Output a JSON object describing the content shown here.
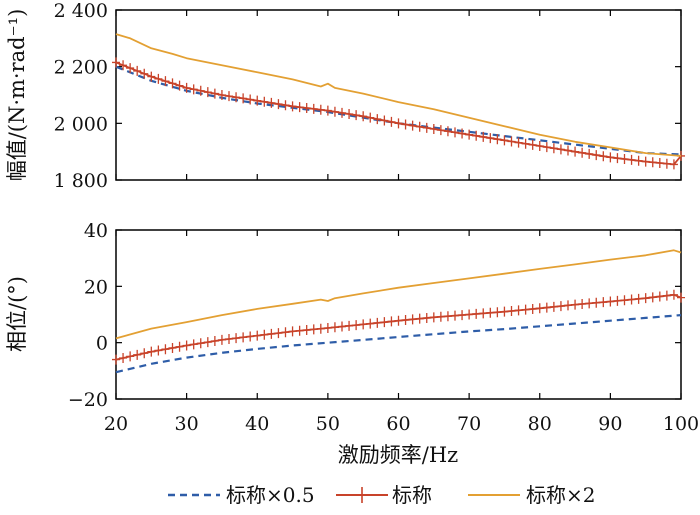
{
  "chart_data": [
    {
      "type": "line",
      "ylabel": "幅值/(N·m·rad⁻¹)",
      "xlim": [
        20,
        100
      ],
      "ylim": [
        1800,
        2400
      ],
      "xticks": [
        20,
        30,
        40,
        50,
        60,
        70,
        80,
        90,
        100
      ],
      "yticks": [
        1800,
        2000,
        2200,
        2400
      ],
      "ytick_labels": [
        "1 800",
        "2 000",
        "2 200",
        "2 400"
      ],
      "grid": false,
      "series": [
        {
          "name": "标称×0.5",
          "color": "#2e5da8",
          "style": "dashed",
          "x": [
            20,
            25,
            30,
            35,
            40,
            45,
            50,
            55,
            60,
            65,
            70,
            75,
            80,
            85,
            90,
            95,
            100
          ],
          "values": [
            2200,
            2150,
            2115,
            2090,
            2070,
            2055,
            2040,
            2020,
            2000,
            1985,
            1970,
            1955,
            1940,
            1925,
            1910,
            1895,
            1890
          ]
        },
        {
          "name": "标称",
          "color": "#c8432a",
          "style": "solid-plus",
          "x": [
            20,
            25,
            30,
            35,
            40,
            45,
            50,
            55,
            60,
            65,
            70,
            75,
            80,
            85,
            90,
            95,
            99,
            100
          ],
          "values": [
            2215,
            2165,
            2125,
            2100,
            2080,
            2060,
            2045,
            2025,
            2000,
            1980,
            1960,
            1940,
            1920,
            1900,
            1880,
            1865,
            1855,
            1885
          ]
        },
        {
          "name": "标称×2",
          "color": "#e3a033",
          "style": "solid",
          "x": [
            20,
            22,
            25,
            28,
            30,
            35,
            40,
            45,
            49,
            50,
            51,
            55,
            60,
            65,
            70,
            75,
            80,
            85,
            90,
            95,
            100
          ],
          "values": [
            2315,
            2300,
            2265,
            2245,
            2230,
            2205,
            2180,
            2155,
            2130,
            2140,
            2125,
            2105,
            2075,
            2050,
            2020,
            1990,
            1960,
            1935,
            1915,
            1895,
            1885
          ]
        }
      ]
    },
    {
      "type": "line",
      "xlabel": "激励频率/Hz",
      "ylabel": "相位/(°)",
      "xlim": [
        20,
        100
      ],
      "ylim": [
        -20,
        40
      ],
      "xticks": [
        20,
        30,
        40,
        50,
        60,
        70,
        80,
        90,
        100
      ],
      "yticks": [
        -20,
        0,
        20,
        40
      ],
      "ytick_labels": [
        "−20",
        "0",
        "20",
        "40"
      ],
      "grid": false,
      "series": [
        {
          "name": "标称×0.5",
          "color": "#2e5da8",
          "style": "dashed",
          "x": [
            20,
            25,
            30,
            35,
            40,
            45,
            50,
            55,
            60,
            65,
            70,
            75,
            80,
            85,
            90,
            95,
            100
          ],
          "values": [
            -10.5,
            -7.5,
            -5.3,
            -3.6,
            -2.2,
            -1,
            0,
            1,
            2,
            3,
            4,
            4.8,
            5.8,
            6.8,
            7.8,
            8.8,
            9.8
          ]
        },
        {
          "name": "标称",
          "color": "#c8432a",
          "style": "solid-plus",
          "x": [
            20,
            25,
            30,
            35,
            40,
            45,
            50,
            55,
            60,
            65,
            70,
            75,
            80,
            85,
            90,
            95,
            99,
            100
          ],
          "values": [
            -6,
            -3.2,
            -1,
            1,
            2.5,
            4,
            5.2,
            6.5,
            7.8,
            9,
            10,
            11,
            12.2,
            13.5,
            14.6,
            15.8,
            17,
            16
          ]
        },
        {
          "name": "标称×2",
          "color": "#e3a033",
          "style": "solid",
          "x": [
            20,
            25,
            30,
            35,
            40,
            45,
            49,
            50,
            51,
            55,
            60,
            65,
            70,
            75,
            80,
            85,
            90,
            95,
            99,
            100
          ],
          "values": [
            1.5,
            5,
            7.3,
            9.8,
            12,
            13.8,
            15.3,
            14.8,
            15.8,
            17.5,
            19.5,
            21.2,
            22.8,
            24.5,
            26.2,
            27.8,
            29.5,
            31,
            32.8,
            32
          ]
        }
      ]
    }
  ],
  "legend": {
    "placement": "bottom",
    "entries": [
      "标称×0.5",
      "标称",
      "标称×2"
    ]
  }
}
